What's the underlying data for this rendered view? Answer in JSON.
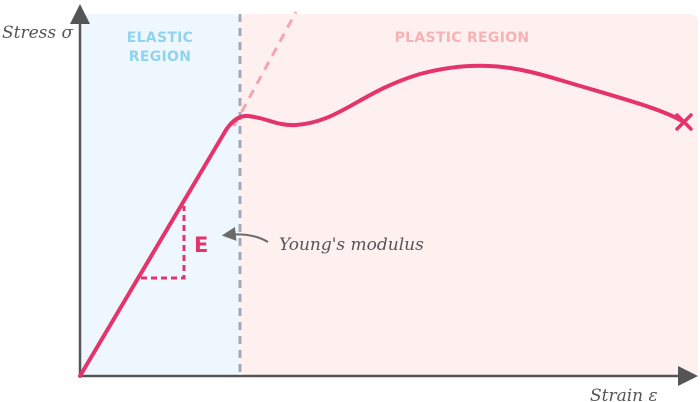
{
  "axes": {
    "y_label": "Stress σ",
    "x_label": "Strain ε"
  },
  "regions": {
    "elastic_line1": "ELASTIC",
    "elastic_line2": "REGION",
    "plastic": "PLASTIC REGION"
  },
  "modulus": {
    "symbol": "E",
    "annotation": "Young's modulus"
  },
  "colors": {
    "curve": "#e5336b",
    "elastic_fill": "#eef7fd",
    "plastic_fill": "#fff0f0",
    "elastic_text": "#8fd3ee",
    "plastic_text": "#f7b2b5",
    "axis": "#555558",
    "divider": "#a7a7b5",
    "extrapolation": "#f3a5b5"
  },
  "markers": {
    "fracture": "×"
  }
}
